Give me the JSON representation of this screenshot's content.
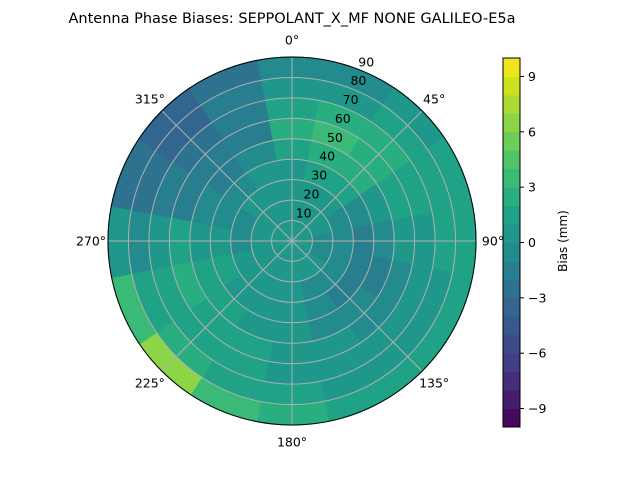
{
  "chart_data": {
    "type": "heatmap",
    "subtype": "polar-contour",
    "title": "Antenna Phase Biases: SEPPOLANT_X_MF  NONE GALILEO-E5a",
    "theta_zero": "north",
    "theta_direction": "clockwise",
    "angle_tick_labels": [
      "0°",
      "45°",
      "90°",
      "135°",
      "180°",
      "225°",
      "270°",
      "315°"
    ],
    "angle_tick_values": [
      0,
      45,
      90,
      135,
      180,
      225,
      270,
      315
    ],
    "radial_tick_labels": [
      "10",
      "20",
      "30",
      "40",
      "50",
      "60",
      "70",
      "80",
      "90"
    ],
    "radial_tick_values": [
      10,
      20,
      30,
      40,
      50,
      60,
      70,
      80,
      90
    ],
    "rlim": [
      0,
      90
    ],
    "grid": true,
    "azimuth_centers_deg": [
      0,
      22.5,
      45,
      67.5,
      90,
      112.5,
      135,
      157.5,
      180,
      202.5,
      225,
      247.5,
      270,
      292.5,
      315,
      337.5
    ],
    "zenith_bins_deg": [
      0,
      10,
      20,
      30,
      40,
      50,
      60,
      70,
      80,
      90
    ],
    "values_mm": [
      [
        0,
        0,
        0,
        0,
        1,
        2,
        1,
        0,
        -1
      ],
      [
        0,
        0,
        0,
        1,
        2,
        3,
        2,
        0,
        -1
      ],
      [
        0,
        0,
        0,
        1,
        2,
        2,
        2,
        1,
        0
      ],
      [
        0,
        0,
        -1,
        -1,
        0,
        1,
        1,
        1,
        1
      ],
      [
        0,
        -1,
        -1,
        -2,
        -1,
        0,
        0,
        1,
        1
      ],
      [
        0,
        -1,
        -1,
        -2,
        -2,
        -1,
        0,
        0,
        1
      ],
      [
        0,
        0,
        -1,
        -2,
        -1,
        -1,
        0,
        0,
        1
      ],
      [
        0,
        0,
        -1,
        -1,
        -1,
        0,
        0,
        0,
        1
      ],
      [
        0,
        0,
        0,
        0,
        0,
        0,
        0,
        1,
        2
      ],
      [
        0,
        0,
        0,
        0,
        0,
        1,
        1,
        1,
        3
      ],
      [
        0,
        0,
        0,
        0,
        1,
        1,
        1,
        2,
        6
      ],
      [
        0,
        0,
        0,
        1,
        1,
        2,
        1,
        1,
        3
      ],
      [
        0,
        0,
        -1,
        0,
        0,
        1,
        0,
        -1,
        0
      ],
      [
        0,
        0,
        -1,
        -1,
        -1,
        -2,
        -2,
        -3,
        -3
      ],
      [
        0,
        0,
        0,
        -1,
        -2,
        -2,
        -3,
        -4,
        -4
      ],
      [
        0,
        0,
        0,
        0,
        -1,
        -2,
        -2,
        -2,
        -3
      ]
    ],
    "colorbar": {
      "label": "Bias (mm)",
      "range": [
        -10,
        10
      ],
      "levels": 20,
      "colormap": "viridis",
      "tick_values": [
        -9,
        -6,
        -3,
        0,
        3,
        6,
        9
      ],
      "tick_labels": [
        "−9",
        "−6",
        "−3",
        "0",
        "3",
        "6",
        "9"
      ]
    }
  }
}
